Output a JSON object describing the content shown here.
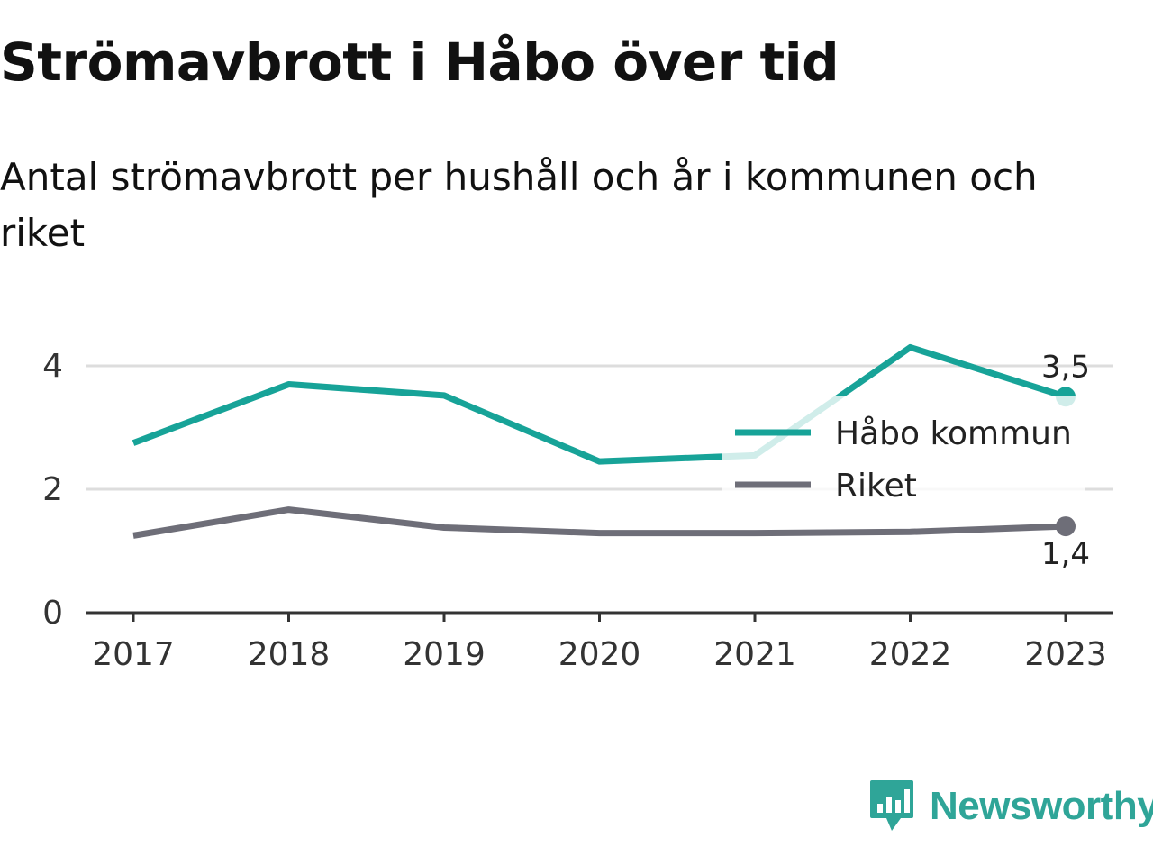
{
  "title": "Strömavbrott i Håbo över tid",
  "subtitle": "Antal strömavbrott per hushåll och år i kommunen och riket",
  "logo": {
    "text": "Newsworthy",
    "icon": "chart-speech-bubble-icon",
    "color": "#2fa598"
  },
  "chart_data": {
    "type": "line",
    "x": [
      "2017",
      "2018",
      "2019",
      "2020",
      "2021",
      "2022",
      "2023"
    ],
    "series": [
      {
        "name": "Håbo kommun",
        "color": "#17a398",
        "values": [
          2.75,
          3.7,
          3.52,
          2.45,
          2.55,
          4.3,
          3.5
        ],
        "end_label": "3,5"
      },
      {
        "name": "Riket",
        "color": "#6e6e78",
        "values": [
          1.25,
          1.67,
          1.38,
          1.29,
          1.29,
          1.31,
          1.4
        ],
        "end_label": "1,4"
      }
    ],
    "yticks": [
      0,
      2,
      4
    ],
    "ytick_labels": [
      "0",
      "2",
      "4"
    ],
    "ylim": [
      0,
      4.4
    ],
    "grid": true,
    "legend_position": "right"
  }
}
